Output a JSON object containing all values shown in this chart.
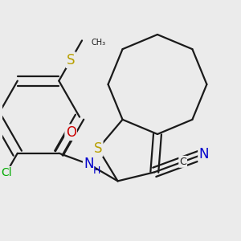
{
  "background_color": "#ebebeb",
  "bond_color": "#1a1a1a",
  "bond_width": 1.6,
  "dbo": 0.014,
  "atom_colors": {
    "S": "#b8a000",
    "N": "#0000cc",
    "O": "#cc0000",
    "Cl": "#00aa00",
    "C": "#1a1a1a"
  },
  "fs_large": 12,
  "fs_med": 10,
  "fs_small": 9
}
